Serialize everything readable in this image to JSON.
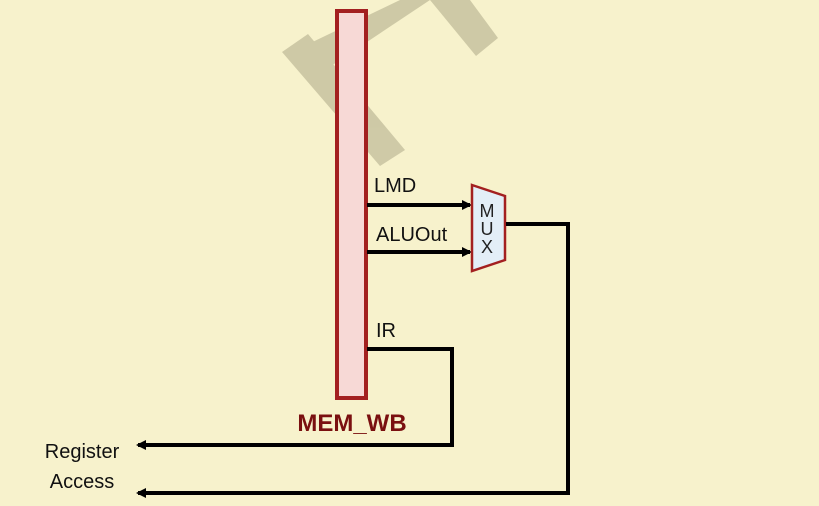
{
  "colors": {
    "background": "#f7f2cc",
    "register_fill": "#f7d9d6",
    "register_stroke": "#a32020",
    "mux_fill": "#e3eef7",
    "mux_stroke": "#a32020",
    "title": "#7a1010",
    "watermark": "#c8c3a0"
  },
  "register": {
    "label": "MEM_WB"
  },
  "mux": {
    "letters": [
      "M",
      "U",
      "X"
    ]
  },
  "signals": {
    "lmd": "LMD",
    "aluout": "ALUOut",
    "ir": "IR"
  },
  "destination": {
    "line1": "Register",
    "line2": "Access"
  }
}
